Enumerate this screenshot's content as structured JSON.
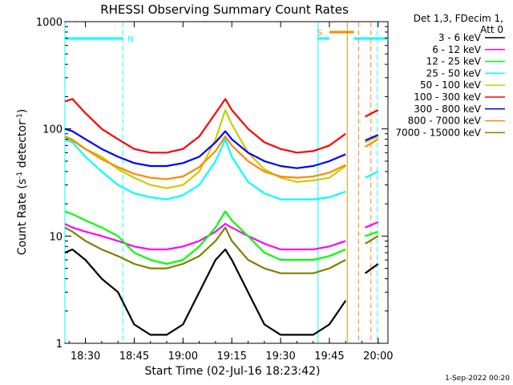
{
  "chart_data": {
    "type": "line",
    "title": "RHESSI Observing Summary Count Rates",
    "xlabel": "Start Time (02-Jul-16 18:23:42)",
    "ylabel": "Count Rate (s",
    "ylabel_sup": "-1",
    "ylabel_mid": " detector",
    "ylabel_end": ")",
    "yscale": "log",
    "ylim": [
      1,
      1000
    ],
    "xlim": [
      "18:23:42",
      "20:03:00"
    ],
    "x_ticks": [
      "18:30",
      "18:45",
      "19:00",
      "19:15",
      "19:30",
      "19:45",
      "20:00"
    ],
    "y_ticks": [
      "1",
      "10",
      "100",
      "1000"
    ],
    "legend_header": [
      "Det 1,3, FDecim 1,",
      "Att 0"
    ],
    "legend_position": "right",
    "footer": "1-Sep-2022 00:20",
    "flags": [
      {
        "label": "N",
        "color": "#00ffff",
        "start": "18:23:42",
        "end": "18:41:30"
      },
      {
        "label": "S",
        "color": "#ff8800",
        "start": "19:45:00",
        "end": "19:52:30"
      }
    ],
    "markers": [
      {
        "time": "18:23:42",
        "color": "#00ffff",
        "style": "solid"
      },
      {
        "time": "18:41:30",
        "color": "#00ffff",
        "style": "dashed"
      },
      {
        "time": "19:41:30",
        "color": "#00ffff",
        "style": "solid"
      },
      {
        "time": "19:50:30",
        "color": "#ff8800",
        "style": "solid"
      },
      {
        "time": "19:54:00",
        "color": "#ff8800",
        "style": "dashed"
      },
      {
        "time": "19:57:45",
        "color": "#ff8800",
        "style": "dashed"
      },
      {
        "time": "19:59:45",
        "color": "#00ffff",
        "style": "dashed"
      }
    ],
    "data_gap": [
      "19:50:30",
      "19:56:00"
    ],
    "x": [
      "18:23:42",
      "18:26",
      "18:30",
      "18:35",
      "18:40",
      "18:45",
      "18:50",
      "18:55",
      "19:00",
      "19:05",
      "19:10",
      "19:13",
      "19:15",
      "19:20",
      "19:25",
      "19:30",
      "19:35",
      "19:40",
      "19:45",
      "19:50",
      "19:56",
      "20:00",
      "20:03"
    ],
    "series": [
      {
        "name": "3 - 6 keV",
        "color": "#000000",
        "values": [
          7,
          7.5,
          6,
          4,
          3,
          1.5,
          1.2,
          1.2,
          1.5,
          3,
          6,
          7.5,
          6,
          3,
          1.5,
          1.2,
          1.2,
          1.2,
          1.5,
          2.5,
          4.5,
          5.5,
          null
        ]
      },
      {
        "name": "6 - 12 keV",
        "color": "#ff00ff",
        "values": [
          13,
          12,
          11,
          10,
          9,
          8,
          7.5,
          7.5,
          8,
          9,
          11,
          13,
          12,
          10,
          8.5,
          7.5,
          7.5,
          7.5,
          8,
          9,
          12,
          13.5,
          null
        ]
      },
      {
        "name": "12 - 25 keV",
        "color": "#00ff00",
        "values": [
          17,
          16,
          14,
          12,
          10,
          7,
          6,
          5.5,
          6,
          8,
          12,
          17,
          14,
          10,
          7,
          6,
          6,
          6,
          6.5,
          7.5,
          10,
          11,
          null
        ]
      },
      {
        "name": "25 - 50 keV",
        "color": "#00ffff",
        "values": [
          80,
          75,
          55,
          40,
          30,
          25,
          23,
          22,
          24,
          30,
          50,
          80,
          55,
          32,
          25,
          22,
          22,
          22,
          23,
          26,
          35,
          40,
          null
        ]
      },
      {
        "name": "50 - 100 keV",
        "color": "#cccc00",
        "values": [
          85,
          80,
          65,
          55,
          42,
          35,
          30,
          28,
          30,
          40,
          80,
          150,
          110,
          60,
          42,
          35,
          32,
          33,
          35,
          45,
          75,
          85,
          null
        ]
      },
      {
        "name": "100 - 300 keV",
        "color": "#ff0000",
        "values": [
          180,
          190,
          140,
          100,
          80,
          65,
          60,
          60,
          65,
          85,
          140,
          190,
          150,
          100,
          75,
          65,
          60,
          62,
          70,
          90,
          130,
          150,
          null
        ]
      },
      {
        "name": "300 - 800 keV",
        "color": "#0000ff",
        "values": [
          100,
          95,
          80,
          65,
          55,
          48,
          45,
          45,
          48,
          55,
          75,
          95,
          80,
          60,
          50,
          45,
          43,
          45,
          50,
          58,
          78,
          88,
          null
        ]
      },
      {
        "name": "800 - 7000 keV",
        "color": "#ff8800",
        "values": [
          85,
          78,
          65,
          52,
          44,
          38,
          35,
          34,
          36,
          44,
          62,
          85,
          70,
          50,
          40,
          36,
          35,
          36,
          39,
          46,
          68,
          80,
          null
        ]
      },
      {
        "name": "7000 - 15000 keV",
        "color": "#808000",
        "values": [
          12,
          11,
          9,
          7.5,
          6.5,
          5.5,
          5,
          5,
          5.5,
          6.5,
          9,
          12,
          9,
          6,
          5,
          4.5,
          4.5,
          4.5,
          5,
          6,
          8.5,
          10,
          null
        ]
      }
    ]
  }
}
